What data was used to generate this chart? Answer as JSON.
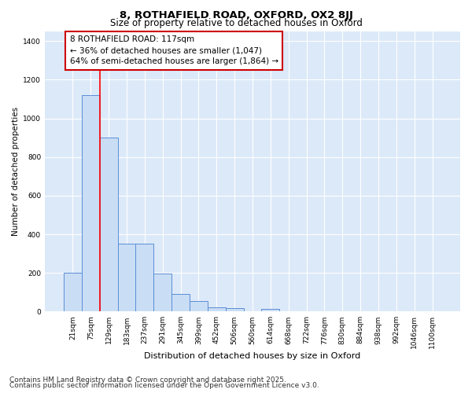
{
  "title_line1": "8, ROTHAFIELD ROAD, OXFORD, OX2 8JJ",
  "title_line2": "Size of property relative to detached houses in Oxford",
  "xlabel": "Distribution of detached houses by size in Oxford",
  "ylabel": "Number of detached properties",
  "bar_color": "#c9ddf5",
  "bar_edge_color": "#5b8ed6",
  "plot_bg_color": "#dce9f8",
  "fig_bg_color": "#ffffff",
  "grid_color": "#ffffff",
  "bin_labels": [
    "21sqm",
    "75sqm",
    "129sqm",
    "183sqm",
    "237sqm",
    "291sqm",
    "345sqm",
    "399sqm",
    "452sqm",
    "506sqm",
    "560sqm",
    "614sqm",
    "668sqm",
    "722sqm",
    "776sqm",
    "830sqm",
    "884sqm",
    "938sqm",
    "992sqm",
    "1046sqm",
    "1100sqm"
  ],
  "bar_values": [
    200,
    1120,
    900,
    350,
    350,
    195,
    90,
    55,
    22,
    18,
    0,
    12,
    0,
    0,
    0,
    0,
    0,
    0,
    0,
    0,
    0
  ],
  "red_line_x": 1.49,
  "ylim": [
    0,
    1450
  ],
  "yticks": [
    0,
    200,
    400,
    600,
    800,
    1000,
    1200,
    1400
  ],
  "annotation_text": "8 ROTHAFIELD ROAD: 117sqm\n← 36% of detached houses are smaller (1,047)\n64% of semi-detached houses are larger (1,864) →",
  "annotation_box_color": "#ffffff",
  "annotation_box_edge": "#cc0000",
  "footer_line1": "Contains HM Land Registry data © Crown copyright and database right 2025.",
  "footer_line2": "Contains public sector information licensed under the Open Government Licence v3.0.",
  "title_fontsize": 9.5,
  "subtitle_fontsize": 8.5,
  "axis_label_fontsize": 8,
  "tick_fontsize": 6.5,
  "annotation_fontsize": 7.5,
  "footer_fontsize": 6.5,
  "ylabel_fontsize": 7.5
}
